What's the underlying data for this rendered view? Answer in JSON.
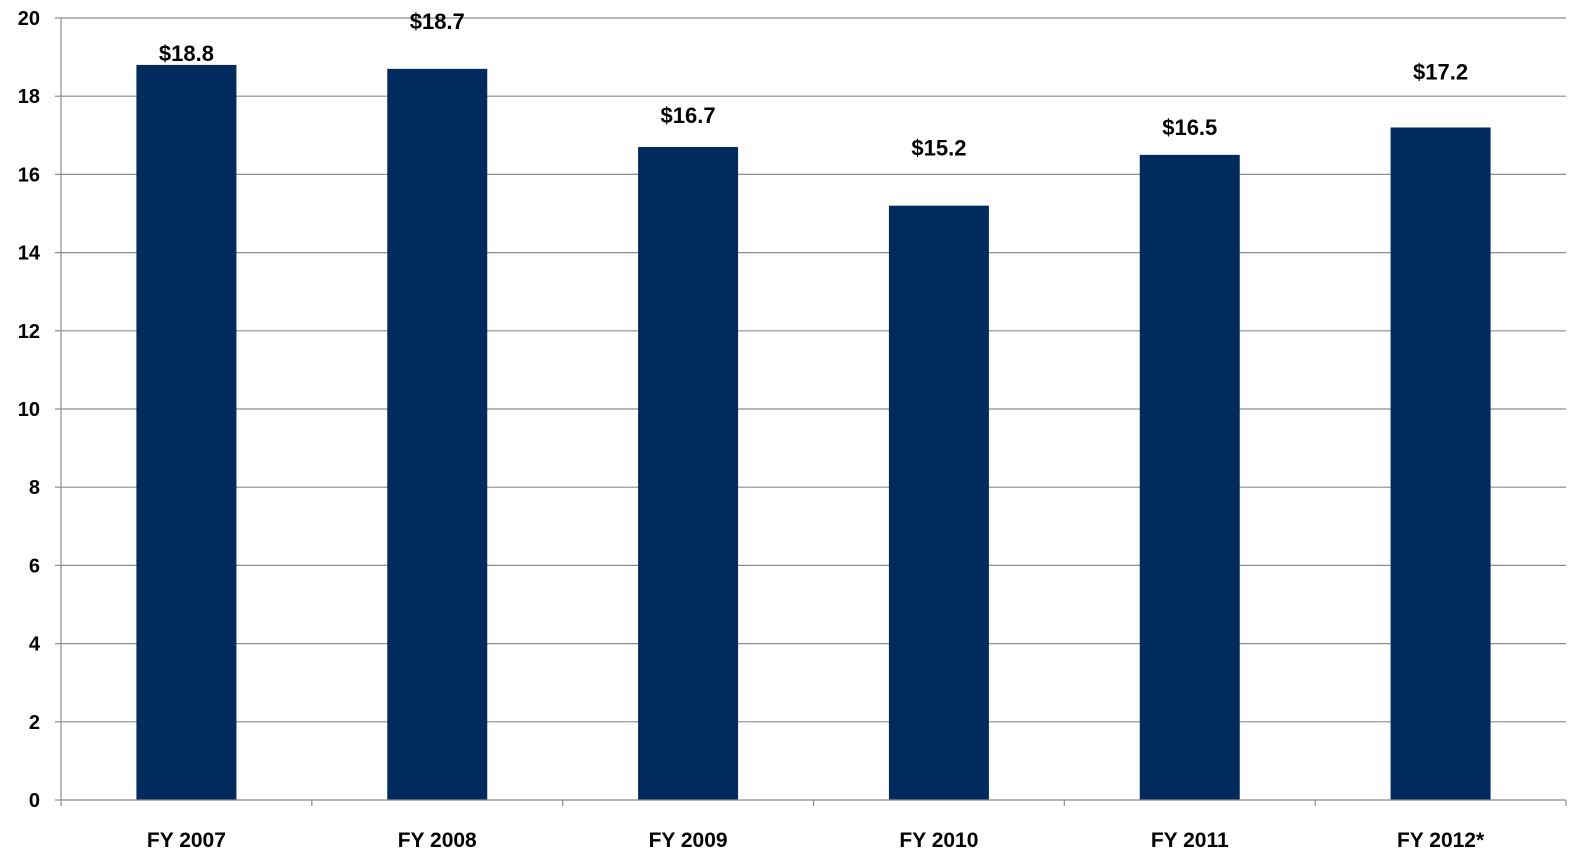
{
  "chart_data": {
    "type": "bar",
    "title": "",
    "xlabel": "",
    "ylabel": "",
    "categories": [
      "FY 2007",
      "FY 2008",
      "FY 2009",
      "FY 2010",
      "FY 2011",
      "FY 2012*"
    ],
    "values": [
      18.8,
      18.7,
      16.7,
      15.2,
      16.5,
      17.2
    ],
    "data_labels": [
      "$18.8",
      "$18.7",
      "$16.7",
      "$15.2",
      "$16.5",
      "$17.2"
    ],
    "ylim": [
      0,
      20
    ],
    "yticks": [
      0,
      2,
      4,
      6,
      8,
      10,
      12,
      14,
      16,
      18,
      20
    ],
    "ytick_labels": [
      "0",
      "2",
      "4",
      "6",
      "8",
      "10",
      "12",
      "14",
      "16",
      "18",
      "20"
    ],
    "grid": true,
    "legend": "none",
    "colors": {
      "bar": "#002b5c",
      "grid": "#8c8c8c",
      "axis": "#8c8c8c",
      "text": "#000000"
    }
  }
}
